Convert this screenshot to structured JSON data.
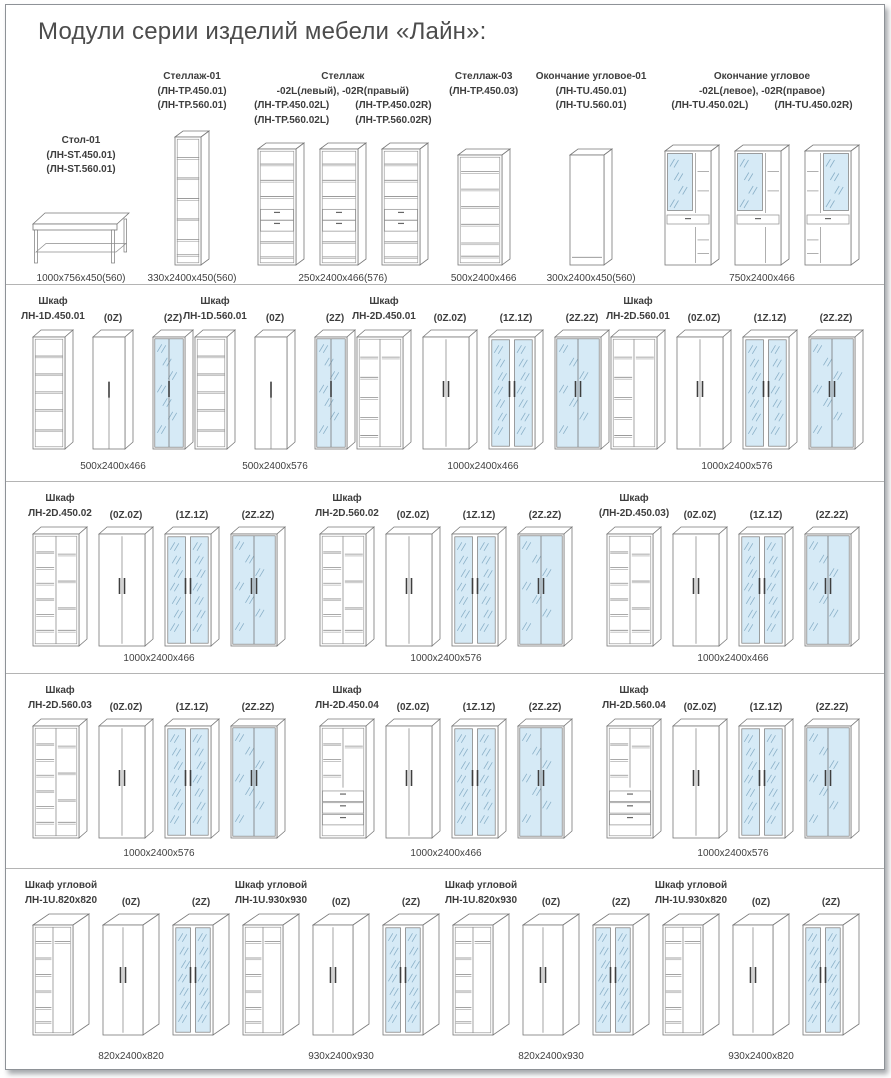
{
  "page": {
    "title": "Модули серии изделий мебели «Лайн»:"
  },
  "colors": {
    "line": "#787878",
    "inner_line": "#8d8d8d",
    "mirror_fill": "#d6eaf6",
    "hatch": "#8ab0c8",
    "handle": "#3f3f3f",
    "text": "#3d3d3d",
    "separator": "#b4b4b4"
  },
  "top_row": {
    "groups": [
      {
        "name_lines": [
          "Стол-01",
          "(ЛН-ST.450.01)",
          "(ЛН-ST.560.01)"
        ],
        "low": true,
        "drawings": [
          "table"
        ],
        "dim": "1000x756x450(560)"
      },
      {
        "name_lines": [
          "Стеллаж-01",
          "(ЛН-TP.450.01)",
          "(ЛН-TP.560.01)"
        ],
        "drawings": [
          "rack-open"
        ],
        "dim": "330x2400x450(560)"
      },
      {
        "name_lines": [
          "Стеллаж",
          "-02L(левый), -02R(правый)"
        ],
        "code_cols": [
          [
            "(ЛН-TP.450.02L)",
            "(ЛН-TP.560.02L)"
          ],
          [
            "(ЛН-TP.450.02R)",
            "(ЛН-TP.560.02R)"
          ]
        ],
        "drawings": [
          "rack-drawers",
          "rack-drawers",
          "rack-drawers-r"
        ],
        "dim": "250x2400x466(576)"
      },
      {
        "name_lines": [
          "Стеллаж-03",
          "(ЛН-TP.450.03)"
        ],
        "drawings": [
          "rack-wide"
        ],
        "dim": "500x2400x466"
      },
      {
        "name_lines": [
          "Окончание угловое-01",
          "(ЛН-TU.450.01)",
          "(ЛН-TU.560.01)"
        ],
        "drawings": [
          "end-plain"
        ],
        "dim": "300x2400x450(560)"
      },
      {
        "name_lines": [
          "Окончание угловое",
          "-02L(левое), -02R(правое)"
        ],
        "code_cols": [
          [
            "(ЛН-TU.450.02L)"
          ],
          [
            "(ЛН-TU.450.02R)"
          ]
        ],
        "drawings": [
          "tower-l",
          "tower-l2",
          "tower-r"
        ],
        "dim": "750x2400x466"
      }
    ]
  },
  "rows": [
    {
      "groups": [
        {
          "name_lines": [
            "Шкаф",
            "ЛН-1D.450.01"
          ],
          "variants": [
            "(0Z)",
            "(2Z)"
          ],
          "drawings": [
            "w1-open",
            "w1-plain",
            "w1-mirror"
          ],
          "dim": "500x2400x466"
        },
        {
          "name_lines": [
            "Шкаф",
            "ЛН-1D.560.01"
          ],
          "variants": [
            "(0Z)",
            "(2Z)"
          ],
          "drawings": [
            "w1-open",
            "w1-plain",
            "w1-mirror"
          ],
          "dim": "500x2400x576"
        },
        {
          "name_lines": [
            "Шкаф",
            "ЛН-2D.450.01"
          ],
          "variants": [
            "(0Z.0Z)",
            "(1Z.1Z)",
            "(2Z.2Z)"
          ],
          "drawings": [
            "w2-open",
            "w2-plain",
            "w2-mirror1",
            "w2-mirror2"
          ],
          "dim": "1000x2400x466"
        },
        {
          "name_lines": [
            "Шкаф",
            "ЛН-2D.560.01"
          ],
          "variants": [
            "(0Z.0Z)",
            "(1Z.1Z)",
            "(2Z.2Z)"
          ],
          "drawings": [
            "w2-open",
            "w2-plain",
            "w2-mirror1",
            "w2-mirror2"
          ],
          "dim": "1000x2400x576"
        }
      ]
    },
    {
      "groups": [
        {
          "name_lines": [
            "Шкаф",
            "ЛН-2D.450.02"
          ],
          "variants": [
            "(0Z.0Z)",
            "(1Z.1Z)",
            "(2Z.2Z)"
          ],
          "drawings": [
            "w2-open-sh",
            "w2-plain",
            "w2-mirror1",
            "w2-mirror2"
          ],
          "dim": "1000x2400x466"
        },
        {
          "name_lines": [
            "Шкаф",
            "ЛН-2D.560.02"
          ],
          "variants": [
            "(0Z.0Z)",
            "(1Z.1Z)",
            "(2Z.2Z)"
          ],
          "drawings": [
            "w2-open-sh",
            "w2-plain",
            "w2-mirror1",
            "w2-mirror2"
          ],
          "dim": "1000x2400x576"
        },
        {
          "name_lines": [
            "Шкаф",
            "(ЛН-2D.450.03)"
          ],
          "variants": [
            "(0Z.0Z)",
            "(1Z.1Z)",
            "(2Z.2Z)"
          ],
          "drawings": [
            "w2-open-sh",
            "w2-plain",
            "w2-mirror1",
            "w2-mirror2"
          ],
          "dim": "1000x2400x466"
        }
      ]
    },
    {
      "groups": [
        {
          "name_lines": [
            "Шкаф",
            "ЛН-2D.560.03"
          ],
          "variants": [
            "(0Z.0Z)",
            "(1Z.1Z)",
            "(2Z.2Z)"
          ],
          "drawings": [
            "w2-open-sh",
            "w2-plain",
            "w2-mirror1",
            "w2-mirror2"
          ],
          "dim": "1000x2400x576"
        },
        {
          "name_lines": [
            "Шкаф",
            "ЛН-2D.450.04"
          ],
          "variants": [
            "(0Z.0Z)",
            "(1Z.1Z)",
            "(2Z.2Z)"
          ],
          "drawings": [
            "w2-open-dr",
            "w2-plain",
            "w2-mirror1",
            "w2-mirror2"
          ],
          "dim": "1000x2400x466"
        },
        {
          "name_lines": [
            "Шкаф",
            "ЛН-2D.560.04"
          ],
          "variants": [
            "(0Z.0Z)",
            "(1Z.1Z)",
            "(2Z.2Z)"
          ],
          "drawings": [
            "w2-open-dr",
            "w2-plain",
            "w2-mirror1",
            "w2-mirror2"
          ],
          "dim": "1000x2400x576"
        }
      ]
    },
    {
      "groups": [
        {
          "name_lines": [
            "Шкаф угловой",
            "ЛН-1U.820x820"
          ],
          "variants": [
            "(0Z)",
            "(2Z)"
          ],
          "drawings": [
            "c-open",
            "c-plain",
            "c-mirror"
          ],
          "dim": "820x2400x820"
        },
        {
          "name_lines": [
            "Шкаф угловой",
            "ЛН-1U.930x930"
          ],
          "variants": [
            "(0Z)",
            "(2Z)"
          ],
          "drawings": [
            "c-open",
            "c-plain",
            "c-mirror"
          ],
          "dim": "930x2400x930"
        },
        {
          "name_lines": [
            "Шкаф угловой",
            "ЛН-1U.820x930"
          ],
          "variants": [
            "(0Z)",
            "(2Z)"
          ],
          "drawings": [
            "c-open",
            "c-plain",
            "c-mirror"
          ],
          "dim": "820x2400x930"
        },
        {
          "name_lines": [
            "Шкаф угловой",
            "ЛН-1U.930x820"
          ],
          "variants": [
            "(0Z)",
            "(2Z)"
          ],
          "drawings": [
            "c-open",
            "c-plain",
            "c-mirror"
          ],
          "dim": "930x2400x820"
        }
      ]
    }
  ]
}
